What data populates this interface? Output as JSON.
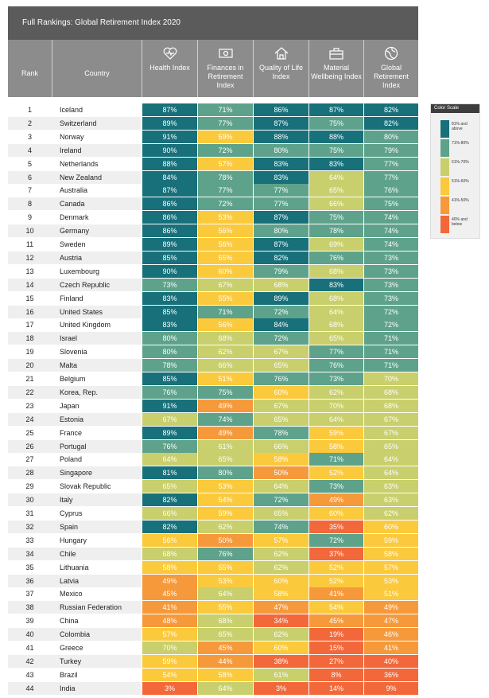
{
  "header": {
    "title": "Full Rankings: Global Retirement Index 2020"
  },
  "table": {
    "columns": [
      "Rank",
      "Country",
      "Health Index",
      "Finances in Retirement Index",
      "Quality of Life Index",
      "Material Wellbeing Index",
      "Global Retirement Index"
    ],
    "rows": [
      [
        1,
        "Iceland",
        "87%",
        "71%",
        "86%",
        "87%",
        "82%"
      ],
      [
        2,
        "Switzerland",
        "89%",
        "77%",
        "87%",
        "75%",
        "82%"
      ],
      [
        3,
        "Norway",
        "91%",
        "59%",
        "88%",
        "88%",
        "80%"
      ],
      [
        4,
        "Ireland",
        "90%",
        "72%",
        "80%",
        "75%",
        "79%"
      ],
      [
        5,
        "Netherlands",
        "88%",
        "57%",
        "83%",
        "83%",
        "77%"
      ],
      [
        6,
        "New Zealand",
        "84%",
        "78%",
        "83%",
        "64%",
        "77%"
      ],
      [
        7,
        "Australia",
        "87%",
        "77%",
        "77%",
        "65%",
        "76%"
      ],
      [
        8,
        "Canada",
        "86%",
        "72%",
        "77%",
        "66%",
        "75%"
      ],
      [
        9,
        "Denmark",
        "86%",
        "53%",
        "87%",
        "75%",
        "74%"
      ],
      [
        10,
        "Germany",
        "86%",
        "56%",
        "80%",
        "78%",
        "74%"
      ],
      [
        11,
        "Sweden",
        "89%",
        "56%",
        "87%",
        "69%",
        "74%"
      ],
      [
        12,
        "Austria",
        "85%",
        "55%",
        "82%",
        "76%",
        "73%"
      ],
      [
        13,
        "Luxembourg",
        "90%",
        "60%",
        "79%",
        "68%",
        "73%"
      ],
      [
        14,
        "Czech Republic",
        "73%",
        "67%",
        "68%",
        "83%",
        "73%"
      ],
      [
        15,
        "Finland",
        "83%",
        "55%",
        "89%",
        "68%",
        "73%"
      ],
      [
        16,
        "United States",
        "85%",
        "71%",
        "72%",
        "64%",
        "72%"
      ],
      [
        17,
        "United Kingdom",
        "83%",
        "56%",
        "84%",
        "68%",
        "72%"
      ],
      [
        18,
        "Israel",
        "80%",
        "68%",
        "72%",
        "65%",
        "71%"
      ],
      [
        19,
        "Slovenia",
        "80%",
        "62%",
        "67%",
        "77%",
        "71%"
      ],
      [
        20,
        "Malta",
        "78%",
        "66%",
        "65%",
        "76%",
        "71%"
      ],
      [
        21,
        "Belgium",
        "85%",
        "51%",
        "76%",
        "73%",
        "70%"
      ],
      [
        22,
        "Korea, Rep.",
        "76%",
        "75%",
        "60%",
        "62%",
        "68%"
      ],
      [
        23,
        "Japan",
        "91%",
        "49%",
        "67%",
        "70%",
        "68%"
      ],
      [
        24,
        "Estonia",
        "67%",
        "74%",
        "65%",
        "64%",
        "67%"
      ],
      [
        25,
        "France",
        "89%",
        "49%",
        "78%",
        "59%",
        "67%"
      ],
      [
        26,
        "Portugal",
        "76%",
        "61%",
        "66%",
        "58%",
        "65%"
      ],
      [
        27,
        "Poland",
        "64%",
        "65%",
        "58%",
        "71%",
        "64%"
      ],
      [
        28,
        "Singapore",
        "81%",
        "80%",
        "50%",
        "52%",
        "64%"
      ],
      [
        29,
        "Slovak Republic",
        "65%",
        "53%",
        "64%",
        "73%",
        "63%"
      ],
      [
        30,
        "Italy",
        "82%",
        "54%",
        "72%",
        "49%",
        "63%"
      ],
      [
        31,
        "Cyprus",
        "66%",
        "59%",
        "65%",
        "60%",
        "62%"
      ],
      [
        32,
        "Spain",
        "82%",
        "62%",
        "74%",
        "35%",
        "60%"
      ],
      [
        33,
        "Hungary",
        "56%",
        "50%",
        "57%",
        "72%",
        "59%"
      ],
      [
        34,
        "Chile",
        "68%",
        "76%",
        "62%",
        "37%",
        "58%"
      ],
      [
        35,
        "Lithuania",
        "58%",
        "55%",
        "62%",
        "52%",
        "57%"
      ],
      [
        36,
        "Latvia",
        "49%",
        "53%",
        "60%",
        "52%",
        "53%"
      ],
      [
        37,
        "Mexico",
        "45%",
        "64%",
        "58%",
        "41%",
        "51%"
      ],
      [
        38,
        "Russian Federation",
        "41%",
        "55%",
        "47%",
        "54%",
        "49%"
      ],
      [
        39,
        "China",
        "48%",
        "68%",
        "34%",
        "45%",
        "47%"
      ],
      [
        40,
        "Colombia",
        "57%",
        "65%",
        "62%",
        "19%",
        "46%"
      ],
      [
        41,
        "Greece",
        "70%",
        "45%",
        "60%",
        "15%",
        "41%"
      ],
      [
        42,
        "Turkey",
        "59%",
        "44%",
        "38%",
        "27%",
        "40%"
      ],
      [
        43,
        "Brazil",
        "54%",
        "58%",
        "61%",
        "8%",
        "36%"
      ],
      [
        44,
        "India",
        "3%",
        "64%",
        "3%",
        "14%",
        "9%"
      ]
    ]
  },
  "legend": {
    "title": "Color Scale",
    "items": [
      {
        "label": "81% and above",
        "color": "#17707a"
      },
      {
        "label": "71%-80%",
        "color": "#5ea28b"
      },
      {
        "label": "61%-70%",
        "color": "#c8cf6c"
      },
      {
        "label": "51%-60%",
        "color": "#fbc93c"
      },
      {
        "label": "41%-50%",
        "color": "#f6993a"
      },
      {
        "label": "40% and below",
        "color": "#f2683a"
      }
    ]
  }
}
